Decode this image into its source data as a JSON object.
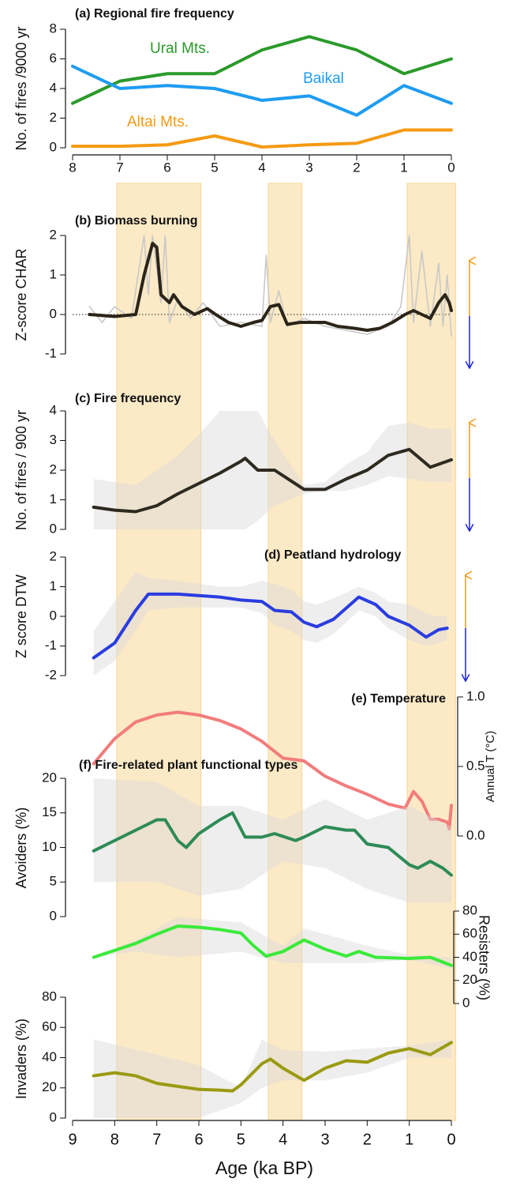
{
  "shared_x": {
    "label": "Age (ka BP)",
    "xlim": [
      9,
      0
    ],
    "xticks": [
      9,
      8,
      7,
      6,
      5,
      4,
      3,
      2,
      1,
      0
    ],
    "highlight_periods": [
      [
        7.95,
        5.95
      ],
      [
        4.35,
        3.55
      ],
      [
        1.05,
        -0.1
      ]
    ]
  },
  "chart_data": [
    {
      "type": "line",
      "title": "(a) Regional fire frequency",
      "ylabel": "No. of fires /9000 yr",
      "xlim": [
        8,
        0
      ],
      "xticks": [
        8,
        7,
        6,
        5,
        4,
        3,
        2,
        1,
        0
      ],
      "ylim": [
        0,
        8
      ],
      "yticks": [
        0,
        2,
        4,
        6,
        8
      ],
      "x": [
        8,
        7,
        6,
        5,
        4,
        3,
        2,
        1,
        0
      ],
      "series": [
        {
          "name": "Ural Mts.",
          "color": "#2a9a2a",
          "values": [
            3,
            4.5,
            5,
            5,
            6.6,
            7.5,
            6.6,
            5,
            6
          ]
        },
        {
          "name": "Baikal",
          "color": "#1e9cf0",
          "values": [
            5.5,
            4,
            4.2,
            4,
            3.2,
            3.5,
            2.2,
            4.2,
            3
          ]
        },
        {
          "name": "Altai Mts.",
          "color": "#f59a12",
          "values": [
            0.1,
            0.1,
            0.2,
            0.8,
            0.05,
            0.2,
            0.3,
            1.2,
            1.2
          ]
        }
      ]
    },
    {
      "type": "line",
      "title": "(b) Biomass burning",
      "ylabel": "Z-score CHAR",
      "ylim": [
        -1,
        2
      ],
      "yticks": [
        -1,
        0,
        1,
        2
      ],
      "series": [
        {
          "color": "#c8c8c8",
          "x": [
            8.6,
            8.3,
            8.0,
            7.6,
            7.3,
            7.2,
            7.1,
            6.9,
            6.8,
            6.7,
            6.5,
            6.2,
            5.9,
            5.5,
            5.0,
            4.5,
            4.4,
            4.3,
            4.1,
            3.9,
            3.5,
            3.0,
            2.5,
            2.0,
            1.5,
            1.2,
            1.0,
            0.9,
            0.7,
            0.5,
            0.3,
            0.2,
            0.1,
            0
          ],
          "values": [
            0.2,
            -0.2,
            0.2,
            -0.1,
            2.0,
            0.5,
            2.0,
            0.3,
            2.0,
            -0.2,
            0.4,
            -0.1,
            0.3,
            -0.3,
            -0.2,
            -0.3,
            1.5,
            -0.2,
            0.6,
            -0.3,
            -0.1,
            -0.3,
            -0.4,
            -0.5,
            -0.3,
            0.2,
            2.0,
            -0.2,
            1.6,
            -0.3,
            1.3,
            -0.3,
            1.0,
            -0.55
          ]
        },
        {
          "color": "#2b2419",
          "x": [
            8.6,
            8.0,
            7.5,
            7.3,
            7.1,
            7.0,
            6.9,
            6.7,
            6.6,
            6.4,
            6.1,
            5.8,
            5.6,
            5.3,
            5.0,
            4.7,
            4.5,
            4.3,
            4.1,
            3.9,
            3.6,
            3.3,
            3.0,
            2.7,
            2.3,
            2.0,
            1.7,
            1.4,
            1.1,
            0.9,
            0.7,
            0.5,
            0.3,
            0.15,
            0.05,
            0
          ],
          "values": [
            0,
            -0.05,
            0,
            1.0,
            1.8,
            1.7,
            0.5,
            0.3,
            0.5,
            0.2,
            0,
            0.15,
            0,
            -0.2,
            -0.3,
            -0.2,
            -0.15,
            0.2,
            0.25,
            -0.25,
            -0.2,
            -0.2,
            -0.2,
            -0.3,
            -0.35,
            -0.4,
            -0.35,
            -0.2,
            0,
            0.1,
            0,
            -0.1,
            0.3,
            0.5,
            0.3,
            0.1
          ]
        }
      ]
    },
    {
      "type": "line",
      "title": "(c) Fire frequency",
      "ylabel": "No. of fires / 900 yr",
      "ylim": [
        0,
        4
      ],
      "yticks": [
        0,
        1,
        2,
        3,
        4
      ],
      "series": [
        {
          "color": "#2d2a20",
          "x": [
            8.5,
            8.0,
            7.5,
            7.0,
            6.5,
            6.0,
            5.5,
            5.0,
            4.9,
            4.6,
            4.2,
            3.5,
            3.0,
            2.5,
            2.0,
            1.5,
            1.0,
            0.5,
            0
          ],
          "values": [
            0.75,
            0.65,
            0.6,
            0.8,
            1.2,
            1.55,
            1.9,
            2.3,
            2.4,
            2.0,
            2.0,
            1.35,
            1.35,
            1.7,
            2.0,
            2.5,
            2.7,
            2.1,
            2.35
          ],
          "band": {
            "x": [
              8.5,
              8.0,
              7.5,
              7.0,
              6.5,
              6.0,
              5.5,
              5.0,
              4.9,
              4.6,
              4.2,
              3.5,
              3.0,
              2.5,
              2.0,
              1.5,
              1.0,
              0.5,
              0
            ],
            "upper": [
              1.7,
              1.6,
              1.5,
              2.0,
              2.5,
              3.2,
              4.0,
              4.0,
              4.0,
              4.0,
              3.0,
              1.5,
              1.6,
              2.2,
              2.6,
              3.5,
              3.6,
              3.4,
              3.4
            ],
            "lower": [
              0,
              0,
              0,
              0,
              0,
              0,
              0,
              0,
              0,
              0.3,
              0.8,
              1.2,
              1.3,
              1.3,
              1.5,
              1.8,
              1.7,
              1.6,
              1.6
            ]
          }
        }
      ]
    },
    {
      "type": "line",
      "title": "(d) Peatland hydrology",
      "ylabel": "Z score  DTW",
      "ylim": [
        -2,
        2
      ],
      "yticks": [
        -2,
        -1,
        0,
        1,
        2
      ],
      "series": [
        {
          "color": "#2a3de0",
          "x": [
            8.5,
            8.0,
            7.5,
            7.2,
            6.5,
            6.0,
            5.5,
            5.0,
            4.5,
            4.2,
            3.8,
            3.5,
            3.2,
            2.8,
            2.2,
            1.8,
            1.5,
            1.0,
            0.6,
            0.3,
            0.1
          ],
          "values": [
            -1.4,
            -0.9,
            0.2,
            0.75,
            0.75,
            0.7,
            0.65,
            0.55,
            0.5,
            0.2,
            0.15,
            -0.2,
            -0.35,
            -0.1,
            0.65,
            0.4,
            0,
            -0.3,
            -0.7,
            -0.45,
            -0.4
          ],
          "band": {
            "x": [
              8.5,
              8.0,
              7.5,
              7.2,
              6.5,
              6.0,
              5.5,
              5.0,
              4.5,
              4.2,
              3.8,
              3.5,
              3.2,
              2.8,
              2.2,
              1.8,
              1.5,
              1.0,
              0.6,
              0.3,
              0.1
            ],
            "upper": [
              -0.5,
              0.5,
              1.5,
              1.3,
              1.2,
              1.1,
              1.0,
              1.0,
              1.2,
              1.1,
              0.9,
              0.5,
              0.4,
              0.6,
              1.0,
              0.8,
              0.5,
              0.4,
              0.1,
              0.0,
              0.0
            ],
            "lower": [
              -2,
              -1.5,
              -0.5,
              0.2,
              0.3,
              0.3,
              0.3,
              0.3,
              0.1,
              -0.3,
              -0.5,
              -0.8,
              -0.9,
              -0.6,
              0.2,
              0.0,
              -0.4,
              -0.8,
              -1.0,
              -0.9,
              -0.8
            ]
          }
        }
      ]
    },
    {
      "type": "line",
      "title": "(e) Temperature",
      "ylabel": "Annual T (°C)",
      "ylim": [
        0,
        1
      ],
      "yticks": [
        {
          "value": 0,
          "label": "0.0"
        },
        0.5,
        {
          "value": 1,
          "label": "1.0"
        }
      ],
      "series": [
        {
          "color": "#f27c7c",
          "x": [
            8.5,
            8.0,
            7.5,
            7.0,
            6.5,
            6.0,
            5.5,
            5.0,
            4.5,
            4.0,
            3.5,
            3.0,
            2.5,
            2.0,
            1.5,
            1.1,
            0.9,
            0.7,
            0.5,
            0.3,
            0.1,
            0.05,
            0
          ],
          "values": [
            0.52,
            0.7,
            0.82,
            0.87,
            0.89,
            0.87,
            0.83,
            0.77,
            0.68,
            0.56,
            0.54,
            0.43,
            0.36,
            0.3,
            0.23,
            0.2,
            0.32,
            0.25,
            0.12,
            0.12,
            0.1,
            0.05,
            0.22
          ]
        }
      ]
    },
    {
      "type": "line",
      "title": "(f) Fire-related plant functional types",
      "ylabel": "Avoiders (%)",
      "ylim": [
        0,
        20
      ],
      "yticks": [
        0,
        5,
        10,
        15,
        20
      ],
      "series": [
        {
          "color": "#2e8b57",
          "x": [
            8.5,
            8.0,
            7.5,
            7.0,
            6.8,
            6.5,
            6.3,
            6.0,
            5.5,
            5.2,
            4.9,
            4.5,
            4.2,
            3.7,
            3.5,
            3.0,
            2.5,
            2.3,
            2.0,
            1.5,
            1.0,
            0.8,
            0.5,
            0.2,
            0
          ],
          "values": [
            9.5,
            11,
            12.5,
            14,
            14,
            11,
            10,
            12,
            14,
            15,
            11.5,
            11.5,
            12,
            11,
            11.5,
            13,
            12.5,
            12.5,
            10.5,
            10,
            7.5,
            7,
            8,
            7,
            6
          ],
          "band": {
            "x": [
              8.5,
              7,
              6,
              5,
              4,
              3,
              2,
              1,
              0
            ],
            "upper": [
              20,
              19.5,
              16,
              16,
              14,
              17,
              14,
              16,
              13
            ],
            "lower": [
              5,
              5,
              3,
              4,
              8,
              7,
              4,
              2,
              2
            ]
          }
        }
      ]
    },
    {
      "type": "line",
      "ylabel": "Resisters (%)",
      "ylim": [
        0,
        80
      ],
      "yticks": [
        0,
        20,
        40,
        60,
        80
      ],
      "series": [
        {
          "color": "#3aea3a",
          "x": [
            8.5,
            8.0,
            7.5,
            7.0,
            6.5,
            6.0,
            5.5,
            5.0,
            4.7,
            4.4,
            4.0,
            3.5,
            3.0,
            2.5,
            2.2,
            1.8,
            1.0,
            0.5,
            0
          ],
          "values": [
            40,
            46,
            52,
            60,
            67,
            66,
            64,
            61,
            50,
            41,
            45,
            55,
            47,
            41,
            45,
            40,
            39,
            40,
            33
          ],
          "band": {
            "x": [
              8.5,
              7.5,
              6.5,
              5,
              4,
              3.5,
              2,
              1,
              0
            ],
            "upper": [
              40,
              55,
              75,
              70,
              50,
              65,
              50,
              42,
              40
            ],
            "lower": [
              40,
              45,
              40,
              45,
              35,
              35,
              35,
              38,
              30
            ]
          }
        }
      ]
    },
    {
      "type": "line",
      "ylabel": "Invaders (%)",
      "ylim": [
        0,
        80
      ],
      "yticks": [
        0,
        20,
        40,
        60,
        80
      ],
      "series": [
        {
          "color": "#9a9a12",
          "x": [
            8.5,
            8.0,
            7.5,
            7.0,
            6.5,
            6.0,
            5.5,
            5.2,
            5.0,
            4.5,
            4.3,
            4.0,
            3.5,
            3.0,
            2.5,
            2.0,
            1.5,
            1.0,
            0.5,
            0
          ],
          "values": [
            28,
            30,
            28,
            23,
            21,
            19,
            18.5,
            18,
            22,
            36,
            39,
            33,
            25,
            33,
            38,
            37,
            43,
            46,
            42,
            50
          ],
          "band": {
            "x": [
              8.5,
              7,
              6,
              5,
              4.5,
              4,
              3,
              2,
              1,
              0
            ],
            "upper": [
              52,
              42,
              35,
              20,
              52,
              45,
              44,
              46,
              48,
              52
            ],
            "lower": [
              0,
              0,
              0,
              10,
              20,
              25,
              25,
              30,
              40,
              40
            ]
          }
        }
      ]
    }
  ]
}
